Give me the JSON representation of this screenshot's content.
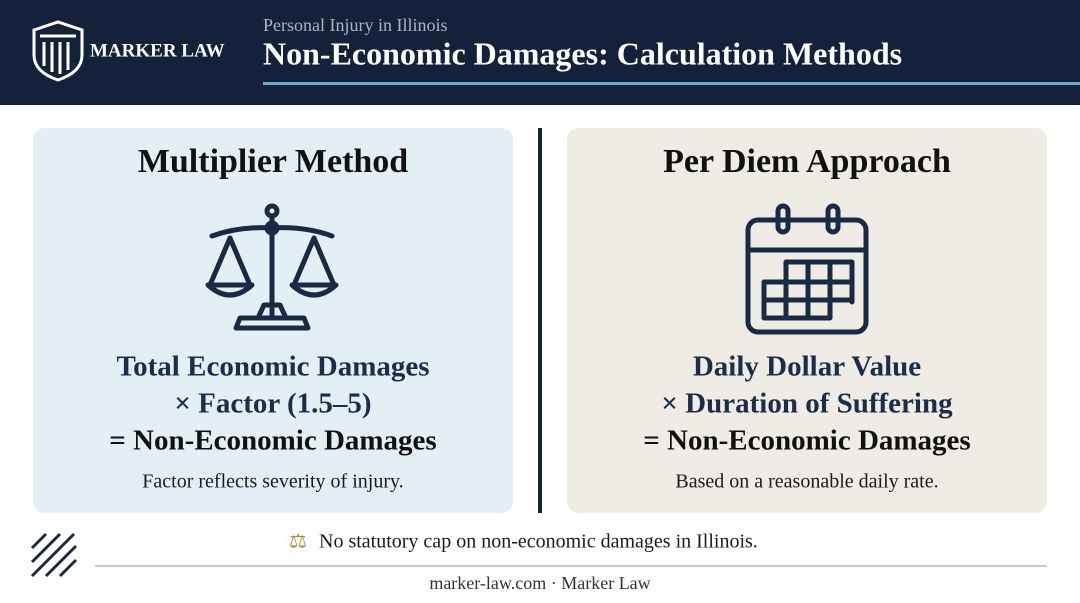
{
  "header": {
    "brand": "MARKER LAW",
    "subtitle": "Personal Injury in Illinois",
    "title": "Non-Economic Damages: Calculation Methods"
  },
  "panels": [
    {
      "title": "Multiplier Method",
      "lines": [
        "Total Economic Damages",
        "× Factor (1.5–5)",
        "= Non-Economic Damages"
      ],
      "caption": "Factor reflects severity of injury."
    },
    {
      "title": "Per Diem Approach",
      "lines": [
        "Daily Dollar Value",
        "× Duration of Suffering",
        "= Non-Economic Damages"
      ],
      "caption": "Based on a reasonable daily rate."
    }
  ],
  "note": "No statutory cap on non-economic damages in Illinois.",
  "footer": "marker-law.com · Marker Law"
}
